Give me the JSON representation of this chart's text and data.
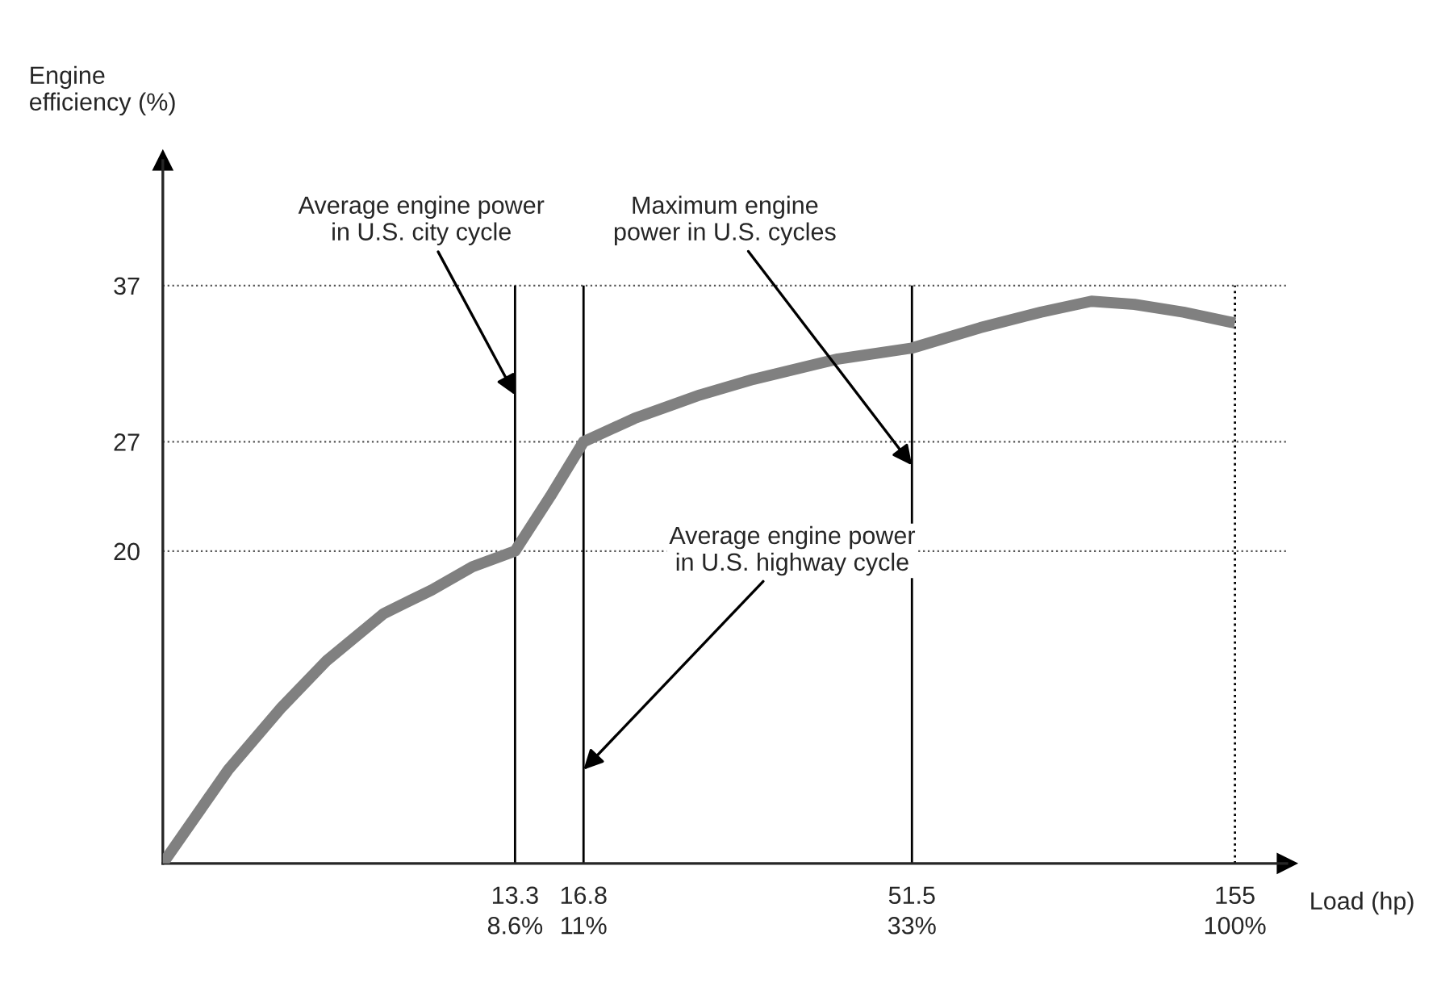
{
  "chart_data": {
    "type": "line",
    "xlabel": "Load (hp)",
    "ylabel": "Engine\nefficiency (%)",
    "log": "x",
    "xlim": [
      4,
      185
    ],
    "ylim": [
      0,
      45
    ],
    "xticks": [
      13.3,
      16.8,
      51.5,
      155
    ],
    "yticks": [
      20,
      27,
      37
    ],
    "grid": "y",
    "series": [
      {
        "color": "#808080",
        "x": [
          4,
          5,
          6,
          7,
          8.5,
          10,
          11.5,
          13.3,
          15,
          16.8,
          20,
          25,
          30,
          40,
          51.5,
          65,
          80,
          95,
          110,
          130,
          155
        ],
        "values": [
          0,
          6,
          10,
          13,
          16,
          17.5,
          19,
          20,
          23.5,
          27,
          28.5,
          30,
          31,
          32.3,
          33,
          34.3,
          35.3,
          36,
          35.8,
          35.3,
          34.6
        ]
      }
    ],
    "ref_lines": [
      {
        "axis": "x",
        "value": 13.3,
        "label": null,
        "color": "#000000",
        "line_style": "solid"
      },
      {
        "axis": "x",
        "value": 16.8,
        "label": null,
        "color": "#000000",
        "line_style": "solid"
      },
      {
        "axis": "x",
        "value": 51.5,
        "label": null,
        "color": "#000000",
        "line_style": "solid"
      },
      {
        "axis": "x",
        "value": 155,
        "label": null,
        "color": "#000000",
        "line_style": "dotted"
      }
    ],
    "annotations": [
      {
        "text": "Average engine power\nin U.S. city cycle",
        "x": 13.3,
        "y": 30
      },
      {
        "text": "Maximum engine\npower in U.S. cycles",
        "x": 51.5,
        "y": 25.5
      },
      {
        "text": "Average engine power\nin U.S. highway cycle",
        "x": 16.8,
        "y": 6
      },
      "8.6%",
      "11%",
      "33%",
      "100%"
    ]
  }
}
